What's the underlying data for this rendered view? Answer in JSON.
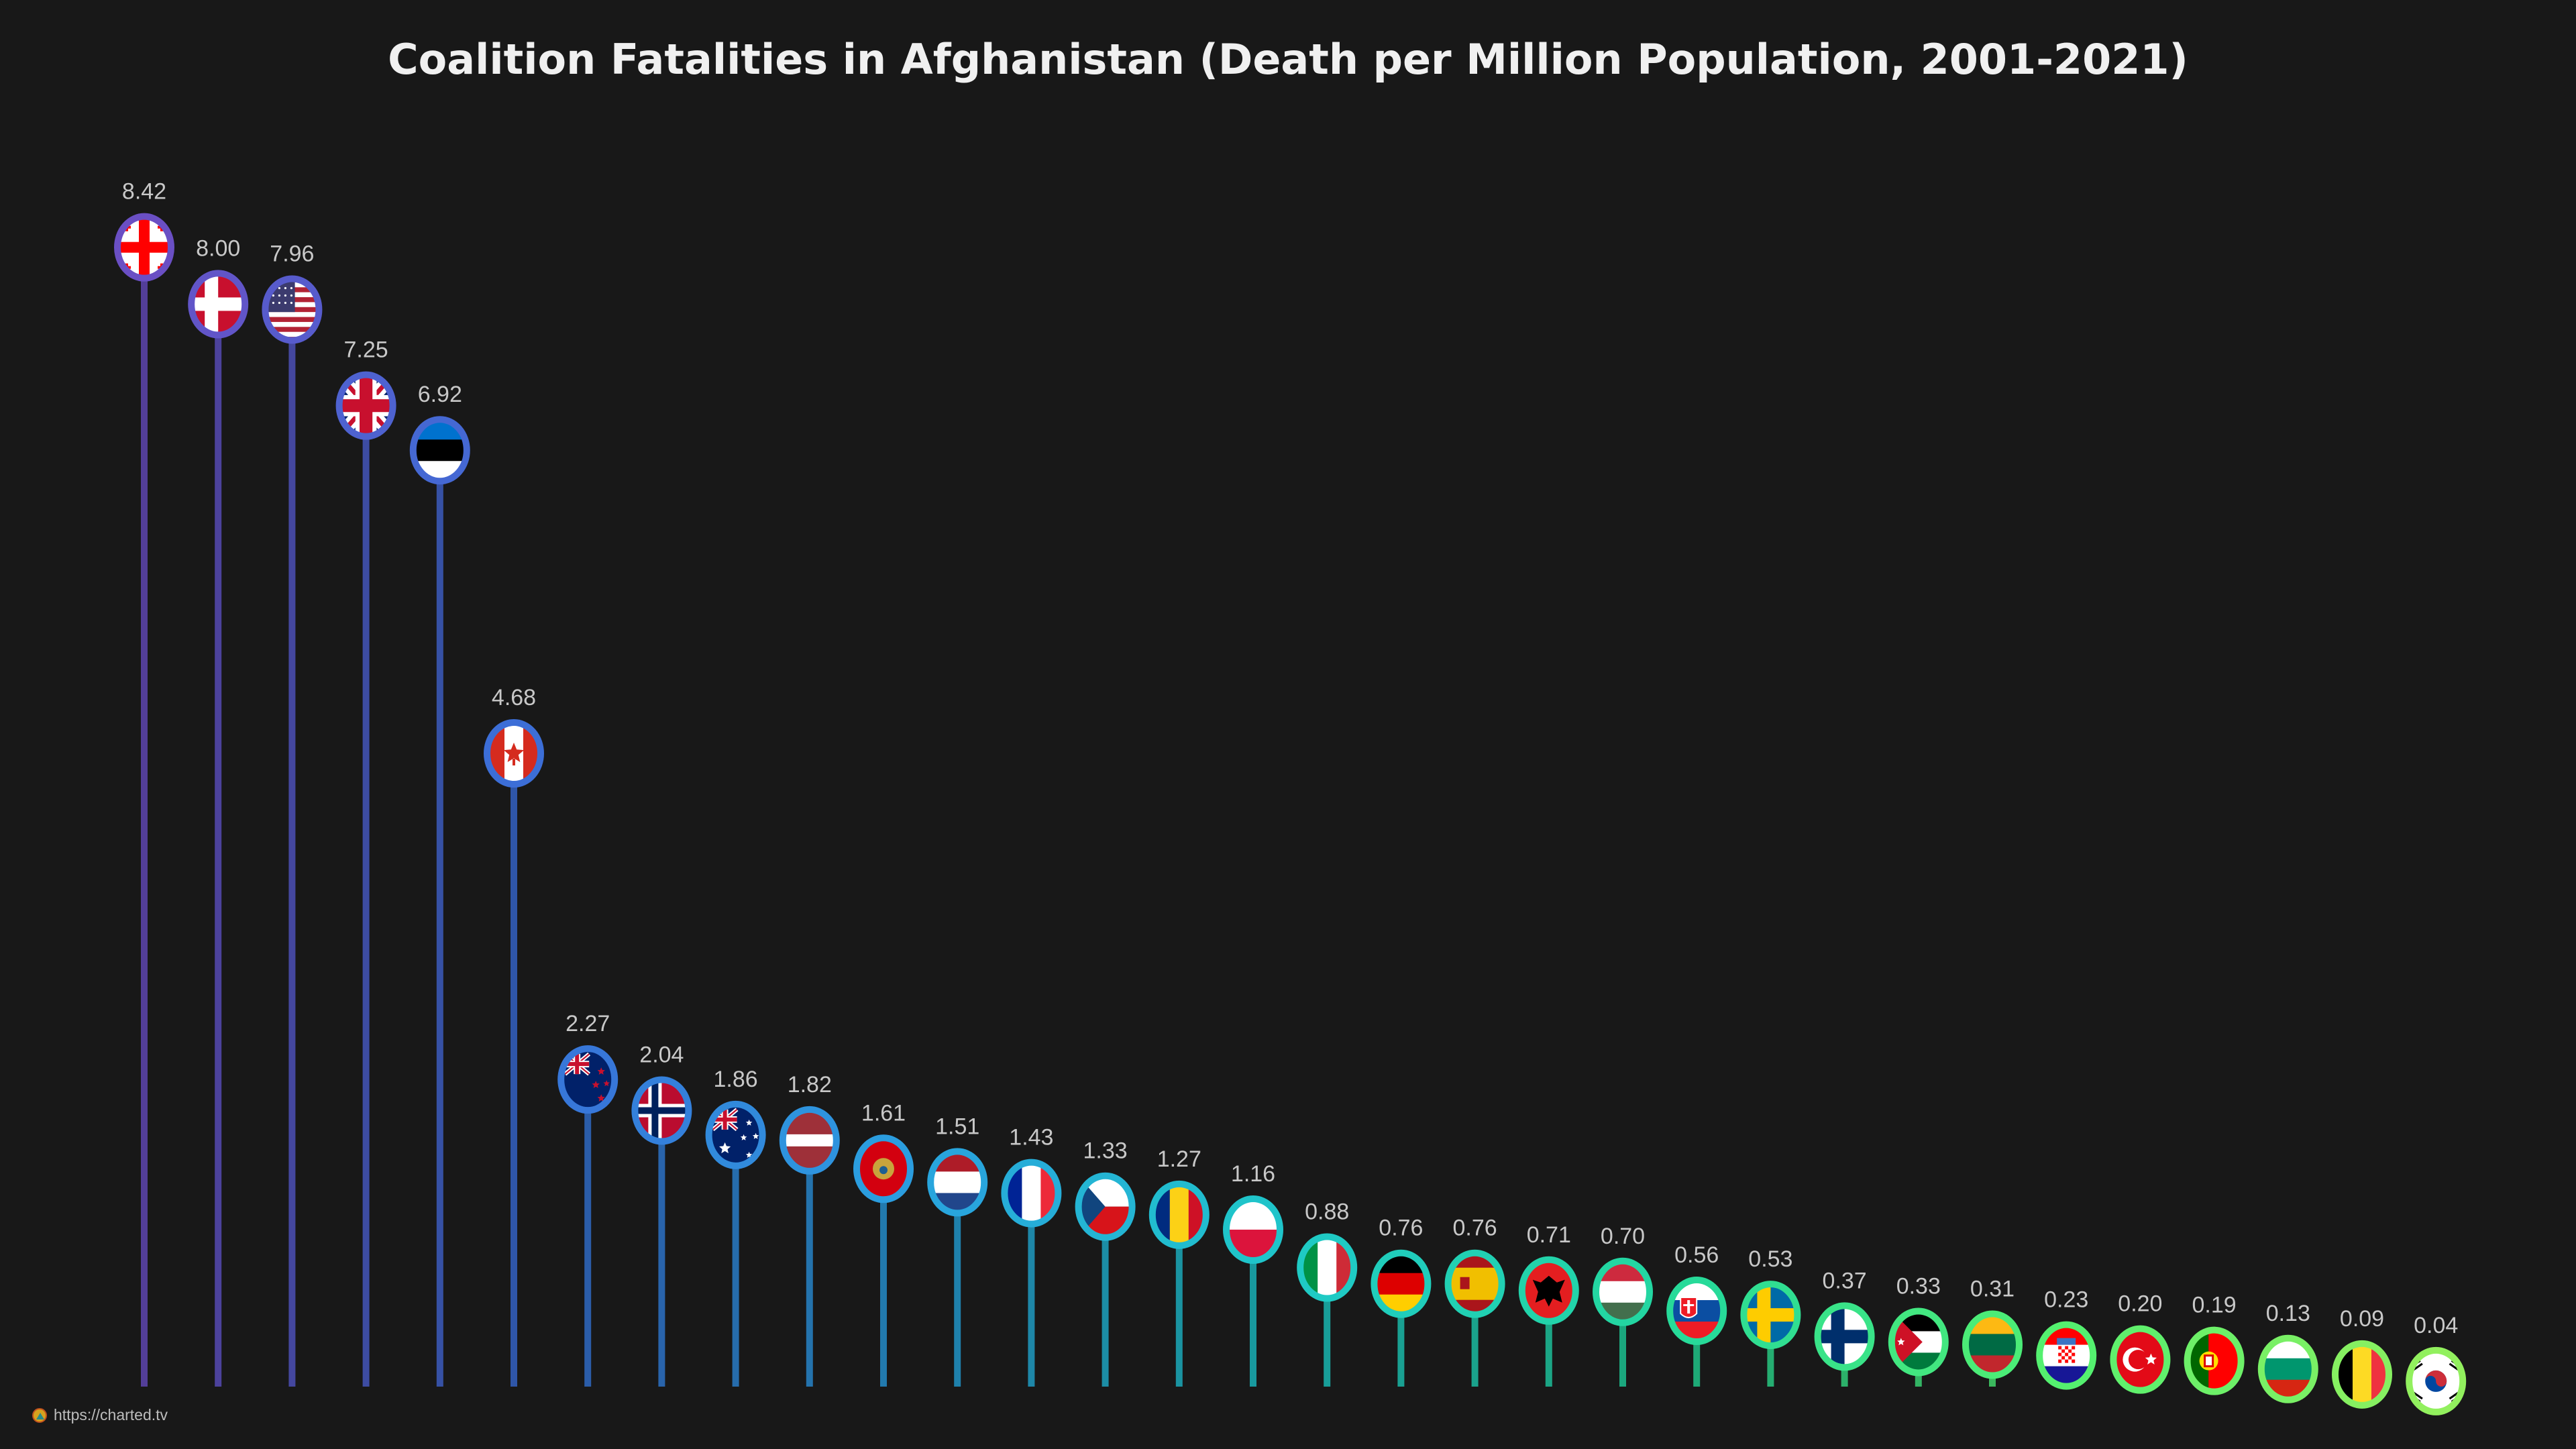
{
  "chart_data": {
    "type": "lollipop",
    "title": "Coalition Fatalities in Afghanistan (Death per Million Population, 2001-2021)",
    "xlabel": "",
    "ylabel": "",
    "ylim": [
      0,
      8.42
    ],
    "grid": false,
    "color_gradient": [
      "#6a4fc4",
      "#3a6fd8",
      "#2aa0e0",
      "#1ec8c8",
      "#24d89c",
      "#52f070",
      "#92f05e"
    ],
    "points": [
      {
        "flag": "flag-georgia-icon",
        "value": 8.42,
        "label": "8.42"
      },
      {
        "flag": "flag-denmark-icon",
        "value": 8.0,
        "label": "8.00"
      },
      {
        "flag": "flag-united-states-icon",
        "value": 7.96,
        "label": "7.96"
      },
      {
        "flag": "flag-united-kingdom-icon",
        "value": 7.25,
        "label": "7.25"
      },
      {
        "flag": "flag-estonia-icon",
        "value": 6.92,
        "label": "6.92"
      },
      {
        "flag": "flag-canada-icon",
        "value": 4.68,
        "label": "4.68"
      },
      {
        "flag": "flag-new-zealand-icon",
        "value": 2.27,
        "label": "2.27"
      },
      {
        "flag": "flag-norway-icon",
        "value": 2.04,
        "label": "2.04"
      },
      {
        "flag": "flag-australia-icon",
        "value": 1.86,
        "label": "1.86"
      },
      {
        "flag": "flag-latvia-icon",
        "value": 1.82,
        "label": "1.82"
      },
      {
        "flag": "flag-montenegro-icon",
        "value": 1.61,
        "label": "1.61"
      },
      {
        "flag": "flag-netherlands-icon",
        "value": 1.51,
        "label": "1.51"
      },
      {
        "flag": "flag-france-icon",
        "value": 1.43,
        "label": "1.43"
      },
      {
        "flag": "flag-czech-republic-icon",
        "value": 1.33,
        "label": "1.33"
      },
      {
        "flag": "flag-romania-icon",
        "value": 1.27,
        "label": "1.27"
      },
      {
        "flag": "flag-poland-icon",
        "value": 1.16,
        "label": "1.16"
      },
      {
        "flag": "flag-italy-icon",
        "value": 0.88,
        "label": "0.88"
      },
      {
        "flag": "flag-germany-icon",
        "value": 0.76,
        "label": "0.76"
      },
      {
        "flag": "flag-spain-icon",
        "value": 0.76,
        "label": "0.76"
      },
      {
        "flag": "flag-albania-icon",
        "value": 0.71,
        "label": "0.71"
      },
      {
        "flag": "flag-hungary-icon",
        "value": 0.7,
        "label": "0.70"
      },
      {
        "flag": "flag-slovakia-icon",
        "value": 0.56,
        "label": "0.56"
      },
      {
        "flag": "flag-sweden-icon",
        "value": 0.53,
        "label": "0.53"
      },
      {
        "flag": "flag-finland-icon",
        "value": 0.37,
        "label": "0.37"
      },
      {
        "flag": "flag-jordan-icon",
        "value": 0.33,
        "label": "0.33"
      },
      {
        "flag": "flag-lithuania-icon",
        "value": 0.31,
        "label": "0.31"
      },
      {
        "flag": "flag-croatia-icon",
        "value": 0.23,
        "label": "0.23"
      },
      {
        "flag": "flag-turkey-icon",
        "value": 0.2,
        "label": "0.20"
      },
      {
        "flag": "flag-portugal-icon",
        "value": 0.19,
        "label": "0.19"
      },
      {
        "flag": "flag-bulgaria-icon",
        "value": 0.13,
        "label": "0.13"
      },
      {
        "flag": "flag-belgium-icon",
        "value": 0.09,
        "label": "0.09"
      },
      {
        "flag": "flag-south-korea-icon",
        "value": 0.04,
        "label": "0.04"
      }
    ]
  },
  "footer": {
    "url": "https://charted.tv",
    "logo_icon": "charted-logo-icon"
  }
}
